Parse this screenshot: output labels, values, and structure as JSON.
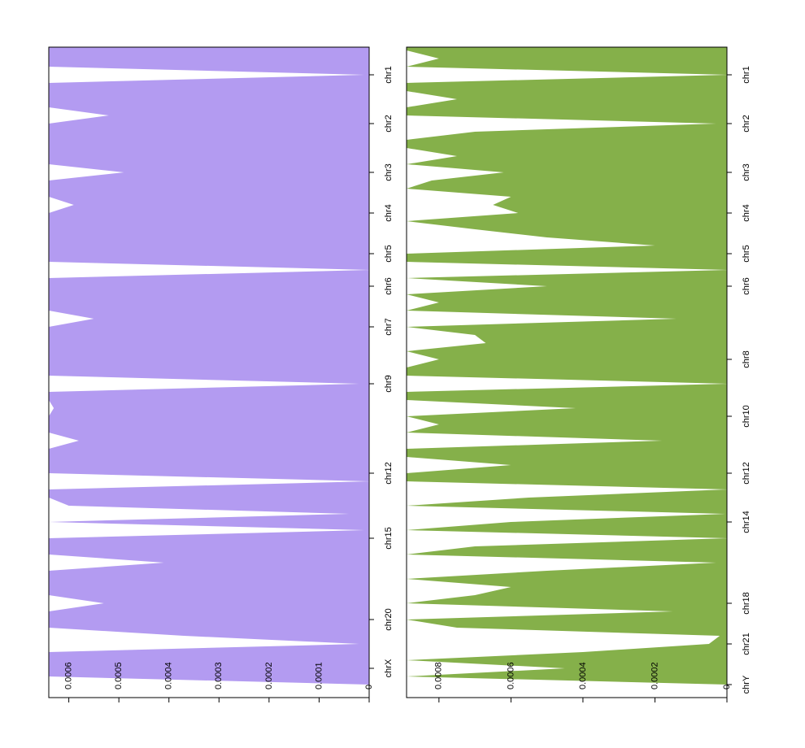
{
  "chart_data": [
    {
      "type": "area",
      "color": "#b39bf1",
      "categories": [
        null,
        null,
        null,
        "chr1",
        null,
        null,
        null,
        null,
        null,
        "chr2",
        null,
        null,
        null,
        null,
        null,
        "chr3",
        null,
        null,
        null,
        null,
        "chr4",
        null,
        null,
        null,
        null,
        "chr5",
        null,
        null,
        null,
        "chr6",
        null,
        null,
        null,
        null,
        "chr7",
        null,
        null,
        null,
        null,
        null,
        null,
        "chr9",
        null,
        null,
        null,
        null,
        null,
        null,
        null,
        null,
        null,
        null,
        "chr12",
        null,
        null,
        null,
        null,
        null,
        null,
        null,
        "chr15",
        null,
        null,
        null,
        null,
        null,
        null,
        null,
        null,
        null,
        "chr20",
        null,
        null,
        null,
        null,
        null,
        "chrX",
        null,
        null
      ],
      "values": [
        0.00064,
        0.00064,
        0.00064,
        1e-05,
        0.00064,
        0.00064,
        0.00064,
        0.00064,
        0.00052,
        0.00064,
        0.00064,
        0.00064,
        0.00064,
        0.00064,
        0.00064,
        0.00049,
        0.00064,
        0.00064,
        0.00064,
        0.00059,
        0.00064,
        0.00064,
        0.00064,
        0.00064,
        0.00064,
        0.00064,
        0.00064,
        0,
        0.00064,
        0.00064,
        0.00064,
        0.00064,
        0.00064,
        0.00055,
        0.00064,
        0.00064,
        0.00064,
        0.00064,
        0.00064,
        0.00064,
        0.00064,
        2e-05,
        0.00064,
        0.00064,
        0.00063,
        0.00064,
        0.00064,
        0.00064,
        0.00058,
        0.00064,
        0.00064,
        0.00064,
        0.00064,
        0,
        0.00064,
        0.00064,
        0.0006,
        4e-05,
        0.00064,
        1e-05,
        0.00064,
        0.00064,
        0.00064,
        0.00041,
        0.00064,
        0.00064,
        0.00064,
        0.00064,
        0.00053,
        0.00064,
        0.00064,
        0.00064,
        0.00037,
        2e-05,
        0.00064,
        0.00064,
        0.00064,
        0.00064,
        0
      ],
      "ylim": [
        0,
        0.00064
      ],
      "yticks": [
        0,
        0.0001,
        0.0002,
        0.0003,
        0.0004,
        0.0005,
        0.0006
      ]
    },
    {
      "type": "area",
      "color": "#85b04a",
      "categories": [
        null,
        null,
        null,
        "chr1",
        null,
        null,
        null,
        null,
        null,
        "chr2",
        null,
        null,
        null,
        null,
        null,
        "chr3",
        null,
        null,
        null,
        null,
        "chr4",
        null,
        null,
        null,
        null,
        "chr5",
        null,
        null,
        null,
        "chr6",
        null,
        null,
        null,
        null,
        null,
        null,
        null,
        null,
        "chr8",
        null,
        null,
        null,
        null,
        null,
        null,
        "chr10",
        null,
        null,
        null,
        null,
        null,
        null,
        "chr12",
        null,
        null,
        null,
        null,
        null,
        "chr14",
        null,
        null,
        null,
        null,
        null,
        null,
        null,
        null,
        null,
        "chr18",
        null,
        null,
        null,
        null,
        "chr21",
        null,
        null,
        null,
        null,
        "chrY"
      ],
      "values": [
        0.00089,
        0.0008,
        0.00089,
        0,
        0.00089,
        0.00089,
        0.00075,
        0.00089,
        0.00089,
        3e-05,
        0.0007,
        0.00089,
        0.00089,
        0.00075,
        0.00089,
        0.00062,
        0.00082,
        0.00089,
        0.0006,
        0.00065,
        0.00058,
        0.00089,
        0.0007,
        0.0005,
        0.0002,
        0.00089,
        0.00089,
        0,
        0.00089,
        0.0005,
        0.00089,
        0.0008,
        0.00089,
        0.00014,
        0.00089,
        0.0007,
        0.00067,
        0.00089,
        0.0008,
        0.00089,
        0.00089,
        0,
        0.00089,
        0.00089,
        0.00042,
        0.00089,
        0.0008,
        0.00089,
        0.00018,
        0.00089,
        0.00089,
        0.0006,
        0.00089,
        0.00089,
        0,
        0.00055,
        0.00089,
        5e-06,
        0.0006,
        0.00089,
        0,
        0.0007,
        0.00089,
        3e-05,
        0.0005,
        0.00089,
        0.0006,
        0.0007,
        0.00089,
        0.00015,
        0.00089,
        0.00075,
        2e-05,
        5e-05,
        0.0004,
        0.00089,
        0.00045,
        0.00089,
        0
      ],
      "ylim": [
        0,
        0.00089
      ],
      "yticks": [
        0,
        0.0002,
        0.0004,
        0.0006,
        0.0008
      ]
    }
  ]
}
